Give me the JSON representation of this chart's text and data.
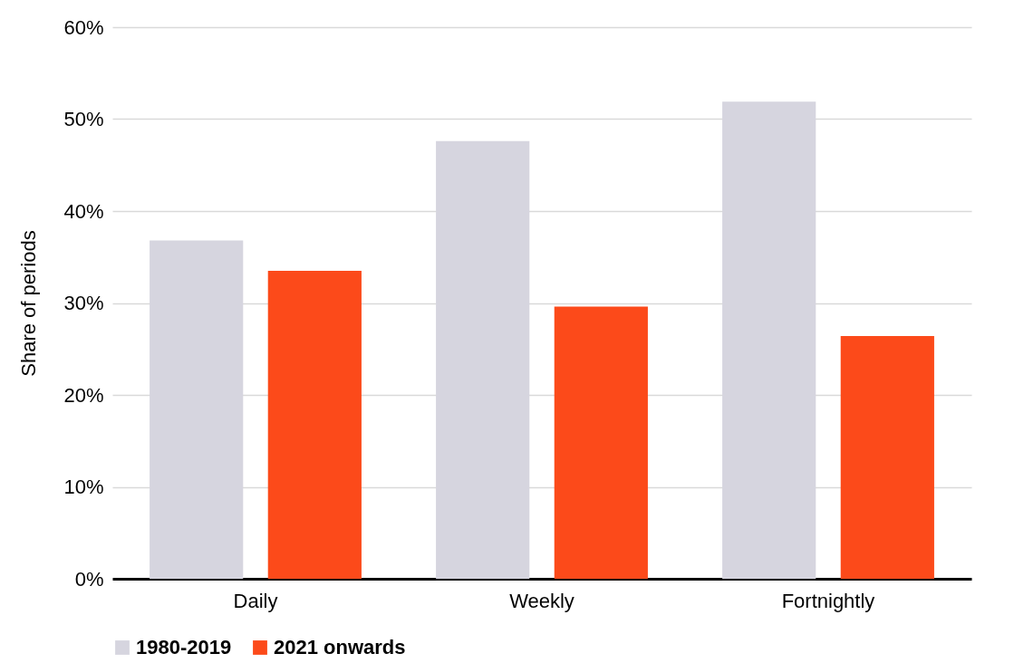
{
  "chart_data": {
    "type": "bar",
    "ylabel": "Share of periods",
    "categories": [
      "Daily",
      "Weekly",
      "Fortnightly"
    ],
    "series": [
      {
        "name": "1980-2019",
        "color": "#d6d5df",
        "values": [
          36.8,
          47.6,
          51.9
        ]
      },
      {
        "name": "2021 onwards",
        "color": "#fc4a1a",
        "values": [
          33.5,
          29.6,
          26.4
        ]
      }
    ],
    "ylim": [
      0,
      60
    ],
    "yticks": [
      {
        "value": 0,
        "label": "0%"
      },
      {
        "value": 10,
        "label": "10%"
      },
      {
        "value": 20,
        "label": "20%"
      },
      {
        "value": 30,
        "label": "30%"
      },
      {
        "value": 40,
        "label": "40%"
      },
      {
        "value": 50,
        "label": "50%"
      },
      {
        "value": 60,
        "label": "60%"
      }
    ],
    "grid": "y",
    "legend": "bottom"
  }
}
